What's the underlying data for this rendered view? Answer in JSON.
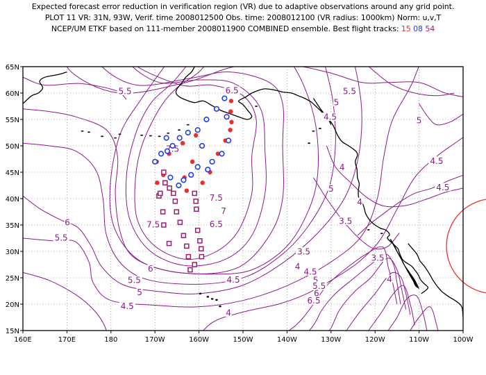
{
  "header": {
    "line1": "Expected forecast error reduction in verification region (VR) due to adaptive observations around any grid point.",
    "line2": "PLOT 11 VR: 31N, 93W, Verif. time 2008012500 Obs. time: 2008012100 (VR radius: 1000km) Norm: u,v,T",
    "line3_prefix": "NCEP/UM ETKF based on 111-member 2008011900 COMBINED ensemble.  Best flight tracks:",
    "flight_ids": [
      "15",
      "08",
      "54"
    ]
  },
  "colors": {
    "contour": "#8b1a8b",
    "flight15": "#e8312f",
    "flight08": "#1f3de8",
    "flight54": "#a0196e",
    "verification_circle": "#e8312f",
    "coast": "#000000"
  },
  "chart_data": {
    "type": "map",
    "projection": "cylindrical",
    "lon_range": [
      160,
      260
    ],
    "lat_range": [
      15,
      65
    ],
    "x_tick_labels": [
      "160E",
      "170E",
      "180",
      "170W",
      "160W",
      "150W",
      "140W",
      "130W",
      "120W",
      "110W",
      "100W"
    ],
    "y_tick_labels": [
      "15N",
      "20N",
      "25N",
      "30N",
      "35N",
      "40N",
      "45N",
      "50N",
      "55N",
      "60N",
      "65N"
    ],
    "grid": true,
    "contour_labels": [
      {
        "text": "5.5",
        "lon": 183.2,
        "lat": 60.4
      },
      {
        "text": "6.5",
        "lon": 207.5,
        "lat": 60.5
      },
      {
        "text": "5.5",
        "lon": 234.2,
        "lat": 60.4
      },
      {
        "text": "5",
        "lon": 231.2,
        "lat": 58.3
      },
      {
        "text": "4.5",
        "lon": 229.8,
        "lat": 55.5
      },
      {
        "text": "5",
        "lon": 250.0,
        "lat": 54.9
      },
      {
        "text": "7.5",
        "lon": 194.0,
        "lat": 49.5
      },
      {
        "text": "4",
        "lon": 232.5,
        "lat": 46.0
      },
      {
        "text": "4.5",
        "lon": 254.0,
        "lat": 47.2
      },
      {
        "text": "4.5",
        "lon": 255.4,
        "lat": 42.2
      },
      {
        "text": "5",
        "lon": 230.0,
        "lat": 41.9
      },
      {
        "text": "4",
        "lon": 236.5,
        "lat": 39.4
      },
      {
        "text": "7.5",
        "lon": 203.9,
        "lat": 40.2
      },
      {
        "text": "7",
        "lon": 205.6,
        "lat": 37.7
      },
      {
        "text": "6.5",
        "lon": 203.9,
        "lat": 35.2
      },
      {
        "text": "7.5",
        "lon": 189.6,
        "lat": 35.1
      },
      {
        "text": "6",
        "lon": 170.1,
        "lat": 35.5
      },
      {
        "text": "5.5",
        "lon": 168.7,
        "lat": 32.6
      },
      {
        "text": "3.5",
        "lon": 233.3,
        "lat": 35.8
      },
      {
        "text": "3.5",
        "lon": 223.8,
        "lat": 30.0
      },
      {
        "text": "3.5",
        "lon": 240.6,
        "lat": 28.8
      },
      {
        "text": "4",
        "lon": 222.4,
        "lat": 27.2
      },
      {
        "text": "4.5",
        "lon": 225.3,
        "lat": 26.2
      },
      {
        "text": "5",
        "lon": 226.5,
        "lat": 24.6
      },
      {
        "text": "5.5",
        "lon": 227.3,
        "lat": 23.5
      },
      {
        "text": "6",
        "lon": 226.7,
        "lat": 22.1
      },
      {
        "text": "6.5",
        "lon": 226.1,
        "lat": 20.7
      },
      {
        "text": "4",
        "lon": 243.3,
        "lat": 24.8
      },
      {
        "text": "6",
        "lon": 189.0,
        "lat": 26.8
      },
      {
        "text": "5.5",
        "lon": 185.3,
        "lat": 24.6
      },
      {
        "text": "5",
        "lon": 186.5,
        "lat": 22.3
      },
      {
        "text": "4.5",
        "lon": 207.8,
        "lat": 24.7
      },
      {
        "text": "4.5",
        "lon": 183.7,
        "lat": 19.7
      },
      {
        "text": "4",
        "lon": 206.7,
        "lat": 18.4
      }
    ],
    "flight_tracks": [
      {
        "id": "15",
        "marker": "filled-circle",
        "points": [
          [
            207.3,
            58.5
          ],
          [
            207.2,
            56.5
          ],
          [
            207.4,
            54.5
          ],
          [
            207.1,
            53.0
          ],
          [
            206.0,
            51.0
          ],
          [
            204.3,
            48.5
          ],
          [
            202.5,
            45.0
          ],
          [
            200.8,
            43.0
          ],
          [
            197.2,
            41.5
          ],
          [
            196.7,
            44.0
          ],
          [
            198.5,
            47.0
          ],
          [
            199.3,
            52.0
          ],
          [
            196.3,
            50.5
          ],
          [
            193.2,
            48.5
          ],
          [
            191.9,
            44.5
          ],
          [
            190.5,
            43.0
          ],
          [
            191.0,
            41.0
          ],
          [
            190.4,
            47.0
          ]
        ]
      },
      {
        "id": "08",
        "marker": "open-circle",
        "points": [
          [
            206.3,
            55.5
          ],
          [
            206.7,
            51.0
          ],
          [
            205.2,
            48.5
          ],
          [
            203.0,
            47.0
          ],
          [
            202.0,
            45.5
          ],
          [
            200.7,
            50.0
          ],
          [
            199.7,
            53.0
          ],
          [
            201.7,
            55.0
          ],
          [
            204.0,
            57.0
          ],
          [
            205.8,
            59.0
          ],
          [
            197.5,
            52.5
          ],
          [
            195.6,
            51.5
          ],
          [
            194.0,
            50.0
          ],
          [
            192.8,
            49.0
          ],
          [
            193.5,
            44.0
          ],
          [
            195.4,
            42.5
          ],
          [
            196.5,
            43.5
          ],
          [
            198.2,
            44.5
          ],
          [
            199.7,
            46.0
          ],
          [
            190.0,
            47.0
          ],
          [
            191.4,
            48.5
          ],
          [
            192.6,
            51.5
          ]
        ]
      },
      {
        "id": "54",
        "marker": "open-square",
        "points": [
          [
            199.0,
            41.0
          ],
          [
            199.3,
            39.5
          ],
          [
            199.4,
            38.0
          ],
          [
            199.7,
            34.0
          ],
          [
            200.2,
            32.0
          ],
          [
            200.5,
            30.5
          ],
          [
            200.6,
            29.0
          ],
          [
            199.0,
            27.5
          ],
          [
            198.0,
            26.5
          ],
          [
            197.6,
            29.0
          ],
          [
            197.2,
            31.0
          ],
          [
            196.5,
            33.0
          ],
          [
            195.7,
            35.5
          ],
          [
            194.9,
            37.5
          ],
          [
            194.6,
            39.5
          ],
          [
            194.2,
            41.0
          ],
          [
            193.3,
            42.0
          ],
          [
            192.3,
            43.0
          ],
          [
            192.0,
            45.0
          ],
          [
            190.9,
            40.5
          ],
          [
            191.2,
            41.0
          ],
          [
            191.8,
            37.5
          ],
          [
            192.0,
            35.0
          ],
          [
            193.2,
            31.5
          ]
        ]
      }
    ],
    "verification_region": {
      "lat": 31,
      "lon": 267,
      "radius_km": 1000
    }
  }
}
